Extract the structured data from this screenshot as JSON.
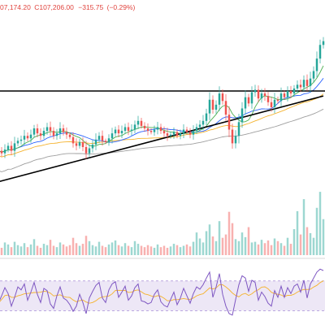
{
  "header": {
    "ohlc_fragment": "07,174.20",
    "close_value": "107,206.00",
    "change": "−315.75",
    "change_pct": "(−0.29%)"
  },
  "colors": {
    "up": "#26a69a",
    "down": "#ef5350",
    "ma_fast": "#4caf50",
    "ma_mid": "#2962ff",
    "ma_slow": "#f5b32e",
    "ma_long": "#9e9e9e",
    "trendline": "#000000",
    "rsi_line": "#7e57c2",
    "rsi_signal": "#f5b32e",
    "rsi_band": "#ede7f6"
  },
  "chart_data": [
    {
      "type": "candlestick",
      "panel": "price",
      "candle_closes": [
        101.2,
        101.0,
        101.3,
        101.6,
        101.2,
        101.8,
        102.0,
        102.1,
        102.4,
        102.2,
        102.5,
        103.0,
        102.6,
        102.4,
        102.8,
        103.1,
        102.8,
        102.4,
        102.6,
        103.0,
        102.7,
        102.5,
        102.3,
        101.8,
        101.6,
        101.9,
        101.5,
        101.0,
        101.4,
        101.7,
        102.1,
        102.4,
        102.0,
        101.9,
        102.2,
        102.6,
        102.9,
        102.6,
        102.8,
        103.1,
        102.8,
        102.9,
        103.3,
        103.6,
        103.2,
        103.0,
        102.8,
        102.7,
        102.9,
        103.1,
        102.8,
        102.6,
        102.4,
        102.5,
        102.7,
        102.4,
        102.6,
        102.9,
        102.7,
        102.5,
        102.8,
        103.1,
        103.3,
        103.6,
        104.2,
        105.3,
        104.5,
        104.9,
        105.8,
        105.2,
        104.1,
        102.9,
        101.8,
        102.4,
        103.5,
        104.6,
        105.5,
        105.0,
        105.9,
        106.1,
        105.4,
        105.8,
        105.6,
        105.1,
        104.7,
        105.3,
        105.2,
        105.8,
        105.5,
        106.0,
        105.8,
        106.2,
        106.5,
        106.3,
        106.9,
        106.4,
        107.0,
        107.6,
        108.6,
        109.7,
        110.0
      ],
      "annotation": "upward-breakout",
      "series": [
        {
          "name": "",
          "kind": "ma_fast"
        },
        {
          "name": "",
          "kind": "ma_mid"
        },
        {
          "name": "",
          "kind": "ma_slow"
        },
        {
          "name": "",
          "kind": "ma_long"
        }
      ],
      "trendlines": [
        {
          "kind": "horizontal-resistance",
          "level": 106.0
        },
        {
          "kind": "rising-support",
          "start_index": -6,
          "end_index": 100,
          "start_level": 98.3,
          "end_level": 105.6
        }
      ],
      "ylim": [
        97,
        112
      ]
    },
    {
      "type": "bar",
      "panel": "volume",
      "values": [
        1.4,
        1.1,
        1.9,
        1.6,
        1.2,
        2.0,
        1.5,
        1.3,
        1.8,
        1.2,
        1.6,
        2.4,
        1.4,
        1.1,
        1.7,
        1.5,
        2.3,
        1.4,
        1.2,
        1.9,
        1.6,
        1.3,
        1.5,
        2.6,
        1.8,
        1.4,
        1.7,
        2.9,
        2.1,
        1.5,
        1.3,
        2.0,
        1.4,
        1.2,
        1.6,
        1.9,
        2.2,
        1.5,
        1.3,
        1.8,
        1.4,
        1.2,
        2.1,
        1.7,
        1.4,
        1.2,
        1.5,
        1.3,
        1.1,
        1.6,
        1.2,
        1.4,
        1.1,
        1.3,
        1.7,
        1.5,
        1.2,
        1.4,
        1.6,
        1.3,
        2.0,
        3.4,
        2.5,
        1.9,
        3.6,
        4.6,
        2.8,
        2.1,
        5.1,
        2.6,
        3.1,
        6.5,
        4.8,
        2.4,
        2.1,
        3.4,
        2.7,
        4.2,
        1.9,
        2.0,
        1.6,
        2.3,
        1.8,
        2.2,
        1.5,
        2.5,
        2.1,
        1.8,
        1.4,
        2.6,
        1.7,
        3.9,
        6.6,
        3.1,
        8.4,
        4.2,
        3.3,
        2.6,
        7.1,
        9.5,
        5.4
      ],
      "ylim": [
        0,
        10
      ]
    },
    {
      "type": "line",
      "panel": "rsi",
      "series": [
        {
          "name": "",
          "kind": "rsi_line",
          "values": [
            40,
            50,
            61,
            53,
            36,
            48,
            62,
            58,
            66,
            44,
            55,
            68,
            52,
            41,
            60,
            57,
            39,
            33,
            50,
            62,
            47,
            44,
            38,
            29,
            36,
            52,
            41,
            26,
            47,
            56,
            64,
            68,
            47,
            41,
            58,
            66,
            69,
            48,
            55,
            63,
            44,
            50,
            61,
            66,
            43,
            42,
            39,
            41,
            52,
            58,
            42,
            37,
            35,
            45,
            55,
            38,
            47,
            60,
            50,
            40,
            53,
            62,
            59,
            65,
            74,
            82,
            48,
            62,
            80,
            52,
            36,
            26,
            24,
            45,
            65,
            77,
            74,
            56,
            71,
            68,
            44,
            55,
            49,
            40,
            36,
            57,
            48,
            63,
            48,
            61,
            53,
            63,
            66,
            55,
            71,
            47,
            66,
            74,
            82,
            86,
            84
          ]
        },
        {
          "name": "",
          "kind": "rsi_signal"
        }
      ],
      "bands": [
        30,
        70
      ],
      "ylim": [
        15,
        95
      ]
    }
  ]
}
